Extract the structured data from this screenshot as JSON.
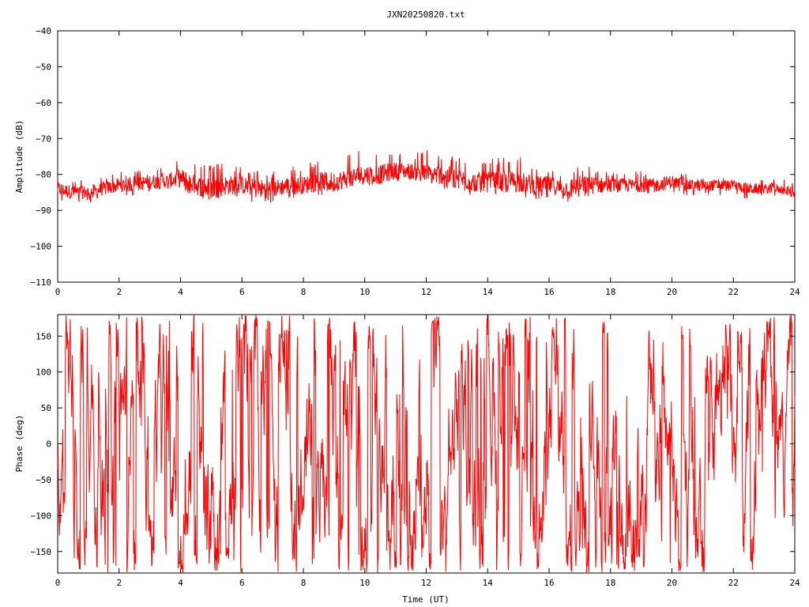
{
  "title": "JXN20250820.txt",
  "line_color": "#ff0000",
  "chart_data": [
    {
      "type": "line",
      "title": "JXN20250820.txt",
      "xlabel": "",
      "ylabel": "Amplitude (dB)",
      "xlim": [
        0,
        24
      ],
      "ylim": [
        -110,
        -40
      ],
      "xticks": [
        "0",
        "2",
        "4",
        "6",
        "8",
        "10",
        "12",
        "14",
        "16",
        "18",
        "20",
        "22",
        "24"
      ],
      "yticks": [
        "-40",
        "-50",
        "-60",
        "-70",
        "-80",
        "-90",
        "-100",
        "-110"
      ],
      "grid": false,
      "series": [
        {
          "color": "#ff0000",
          "x": [
            0,
            0.5,
            1,
            1.5,
            2,
            2.5,
            3,
            3.5,
            4,
            4.5,
            5,
            5.5,
            6,
            6.5,
            7,
            7.5,
            8,
            8.5,
            9,
            9.5,
            10,
            10.5,
            11,
            11.5,
            12,
            12.5,
            13,
            13.5,
            14,
            14.5,
            15,
            15.5,
            16,
            16.5,
            17,
            17.5,
            18,
            18.5,
            19,
            19.5,
            20,
            20.5,
            21,
            21.5,
            22,
            22.5,
            23,
            23.5,
            24
          ],
          "center": [
            -84,
            -85,
            -85,
            -84,
            -83,
            -83,
            -82,
            -82,
            -81,
            -83,
            -84,
            -83,
            -83,
            -84,
            -84,
            -83,
            -83,
            -82,
            -82,
            -81,
            -80,
            -80,
            -79,
            -79,
            -80,
            -80,
            -81,
            -82,
            -82,
            -82,
            -82,
            -83,
            -83,
            -84,
            -83,
            -83,
            -83,
            -83,
            -83,
            -83,
            -82,
            -83,
            -83,
            -83,
            -83,
            -84,
            -84,
            -84,
            -85
          ],
          "low": [
            -88,
            -88,
            -88,
            -87,
            -86,
            -86,
            -86,
            -85,
            -85,
            -87,
            -88,
            -87,
            -87,
            -88,
            -88,
            -87,
            -86,
            -86,
            -85,
            -84,
            -83,
            -83,
            -82,
            -82,
            -83,
            -84,
            -85,
            -86,
            -86,
            -86,
            -86,
            -87,
            -87,
            -88,
            -87,
            -87,
            -86,
            -86,
            -86,
            -86,
            -86,
            -86,
            -86,
            -86,
            -86,
            -87,
            -86,
            -86,
            -87
          ],
          "high": [
            -81,
            -81,
            -81,
            -80,
            -79,
            -79,
            -78,
            -78,
            -75,
            -77,
            -77,
            -77,
            -78,
            -78,
            -79,
            -78,
            -77,
            -76,
            -75,
            -74,
            -73,
            -73,
            -73,
            -74,
            -73,
            -74,
            -75,
            -76,
            -76,
            -75,
            -75,
            -77,
            -78,
            -79,
            -77,
            -78,
            -79,
            -79,
            -79,
            -79,
            -79,
            -80,
            -80,
            -80,
            -81,
            -81,
            -81,
            -81,
            -82
          ]
        }
      ]
    },
    {
      "type": "line",
      "title": "",
      "xlabel": "Time (UT)",
      "ylabel": "Phase (deg)",
      "xlim": [
        0,
        24
      ],
      "ylim": [
        -180,
        180
      ],
      "xticks": [
        "0",
        "2",
        "4",
        "6",
        "8",
        "10",
        "12",
        "14",
        "16",
        "18",
        "20",
        "22",
        "24"
      ],
      "yticks": [
        "150",
        "100",
        "50",
        "0",
        "-50",
        "-100",
        "-150"
      ],
      "grid": false,
      "series": [
        {
          "color": "#ff0000",
          "description_points": 2000
        }
      ]
    }
  ]
}
